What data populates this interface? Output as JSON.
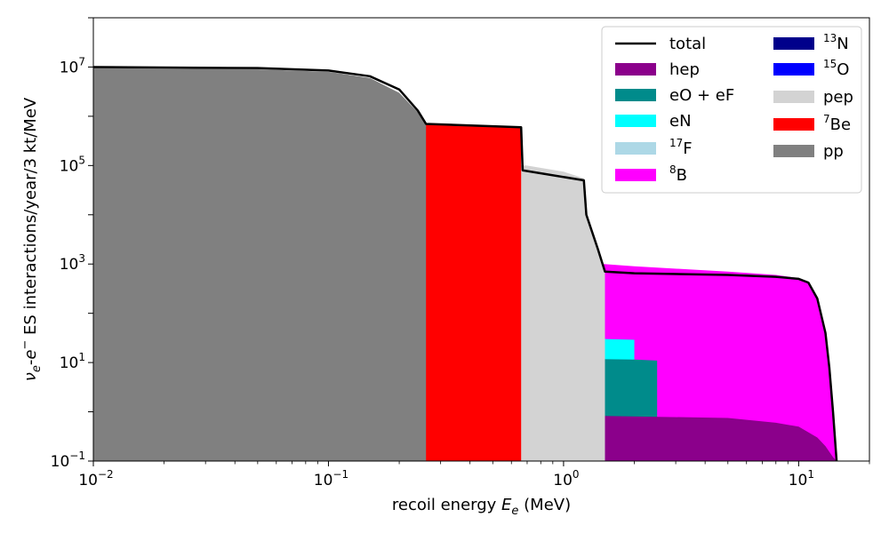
{
  "chart_data": {
    "type": "area",
    "xscale": "log",
    "yscale": "log",
    "xlim": [
      0.01,
      20
    ],
    "ylim": [
      0.1,
      100000000
    ],
    "xlabel": "recoil energy E_e (MeV)",
    "ylabel": "ν_e-e⁻ ES interactions/year/3 kt/MeV",
    "x_ticks": [
      {
        "value": 0.01,
        "base": "10",
        "exp": "−2"
      },
      {
        "value": 0.1,
        "base": "10",
        "exp": "−1"
      },
      {
        "value": 1,
        "base": "10",
        "exp": "0"
      },
      {
        "value": 10,
        "base": "10",
        "exp": "1"
      }
    ],
    "y_ticks": [
      {
        "value": 0.1,
        "base": "10",
        "exp": "−1"
      },
      {
        "value": 10,
        "base": "10",
        "exp": "1"
      },
      {
        "value": 1000,
        "base": "10",
        "exp": "3"
      },
      {
        "value": 100000,
        "base": "10",
        "exp": "5"
      },
      {
        "value": 10000000,
        "base": "10",
        "exp": "7"
      }
    ],
    "legend_position": "top-right",
    "legend_columns": [
      [
        {
          "key": "total",
          "label": "total",
          "pre": "",
          "sup": ""
        },
        {
          "key": "hep",
          "label": "hep",
          "pre": "",
          "sup": ""
        },
        {
          "key": "eOeF",
          "label": "eO + eF",
          "pre": "",
          "sup": ""
        },
        {
          "key": "eN",
          "label": "eN",
          "pre": "",
          "sup": ""
        },
        {
          "key": "F17",
          "label": "F",
          "pre": "",
          "sup": "17"
        },
        {
          "key": "B8",
          "label": "B",
          "pre": "",
          "sup": "8"
        }
      ],
      [
        {
          "key": "N13",
          "label": "N",
          "pre": "",
          "sup": "13"
        },
        {
          "key": "O15",
          "label": "O",
          "pre": "",
          "sup": "15"
        },
        {
          "key": "pep",
          "label": "pep",
          "pre": "",
          "sup": ""
        },
        {
          "key": "Be7",
          "label": "Be",
          "pre": "",
          "sup": "7"
        },
        {
          "key": "pp",
          "label": "pp",
          "pre": "",
          "sup": ""
        }
      ]
    ],
    "colors": {
      "total": "#000000",
      "hep": "#8b008b",
      "eOeF": "#008b8b",
      "eN": "#00ffff",
      "F17": "#add8e6",
      "B8": "#ff00ff",
      "N13": "#00008b",
      "O15": "#0000ff",
      "pep": "#d3d3d3",
      "Be7": "#ff0000",
      "pp": "#808080"
    },
    "series": [
      {
        "key": "B8",
        "points": [
          [
            0.01,
            1500
          ],
          [
            0.1,
            1450
          ],
          [
            0.5,
            1300
          ],
          [
            1,
            1150
          ],
          [
            2,
            900
          ],
          [
            5,
            700
          ],
          [
            8,
            600
          ],
          [
            10,
            520
          ],
          [
            11,
            420
          ],
          [
            12,
            200
          ],
          [
            13,
            40
          ],
          [
            13.5,
            8
          ],
          [
            14,
            1
          ],
          [
            14.5,
            0.1
          ]
        ]
      },
      {
        "key": "F17",
        "points": [
          [
            0.01,
            900
          ],
          [
            0.1,
            880
          ],
          [
            0.3,
            820
          ],
          [
            0.6,
            600
          ],
          [
            0.9,
            300
          ],
          [
            1.1,
            150
          ],
          [
            1.3,
            60
          ],
          [
            1.5,
            30
          ]
        ]
      },
      {
        "key": "eN",
        "points": [
          [
            0.01,
            35
          ],
          [
            0.5,
            34
          ],
          [
            1,
            32
          ],
          [
            1.5,
            30
          ],
          [
            2,
            29
          ]
        ]
      },
      {
        "key": "eOeF",
        "points": [
          [
            0.01,
            13
          ],
          [
            0.5,
            12.5
          ],
          [
            1,
            12
          ],
          [
            2,
            11.5
          ],
          [
            2.5,
            11
          ]
        ]
      },
      {
        "key": "hep",
        "points": [
          [
            0.01,
            0.9
          ],
          [
            1,
            0.85
          ],
          [
            5,
            0.75
          ],
          [
            8,
            0.6
          ],
          [
            10,
            0.5
          ],
          [
            12,
            0.3
          ],
          [
            13,
            0.2
          ],
          [
            14,
            0.12
          ],
          [
            14.5,
            0.1
          ]
        ]
      },
      {
        "key": "N13",
        "points": [
          [
            0.01,
            40000
          ],
          [
            0.1,
            38000
          ],
          [
            0.3,
            32000
          ],
          [
            0.5,
            20000
          ],
          [
            0.7,
            8000
          ],
          [
            0.85,
            3000
          ],
          [
            0.95,
            1300
          ]
        ]
      },
      {
        "key": "O15",
        "points": [
          [
            0.01,
            90000
          ],
          [
            0.1,
            85000
          ],
          [
            0.4,
            70000
          ],
          [
            0.8,
            40000
          ],
          [
            1.0,
            20000
          ],
          [
            1.2,
            7000
          ],
          [
            1.35,
            2500
          ],
          [
            1.5,
            700
          ]
        ]
      },
      {
        "key": "pep",
        "points": [
          [
            0.01,
            115000
          ],
          [
            0.5,
            108000
          ],
          [
            0.7,
            100000
          ],
          [
            1.0,
            75000
          ],
          [
            1.22,
            55000
          ],
          [
            1.25,
            10000
          ],
          [
            1.4,
            2000
          ],
          [
            1.5,
            700
          ]
        ]
      },
      {
        "key": "Be7",
        "points": [
          [
            0.01,
            800000
          ],
          [
            0.1,
            750000
          ],
          [
            0.3,
            700000
          ],
          [
            0.66,
            600000
          ]
        ]
      },
      {
        "key": "pp",
        "points": [
          [
            0.01,
            9500000
          ],
          [
            0.05,
            9000000
          ],
          [
            0.1,
            8000000
          ],
          [
            0.15,
            6000000
          ],
          [
            0.2,
            3000000
          ],
          [
            0.24,
            1200000
          ],
          [
            0.26,
            700000
          ]
        ]
      },
      {
        "key": "total",
        "points": [
          [
            0.01,
            10000000
          ],
          [
            0.05,
            9500000
          ],
          [
            0.1,
            8500000
          ],
          [
            0.15,
            6500000
          ],
          [
            0.2,
            3500000
          ],
          [
            0.24,
            1300000
          ],
          [
            0.26,
            700000
          ],
          [
            0.66,
            600000
          ],
          [
            0.67,
            80000
          ],
          [
            1.22,
            50000
          ],
          [
            1.25,
            10000
          ],
          [
            1.4,
            2000
          ],
          [
            1.5,
            700
          ],
          [
            2,
            650
          ],
          [
            5,
            600
          ],
          [
            8,
            550
          ],
          [
            10,
            500
          ],
          [
            11,
            420
          ],
          [
            12,
            200
          ],
          [
            13,
            40
          ],
          [
            13.5,
            8
          ],
          [
            14,
            1
          ],
          [
            14.5,
            0.1
          ]
        ]
      }
    ],
    "grid": false
  }
}
